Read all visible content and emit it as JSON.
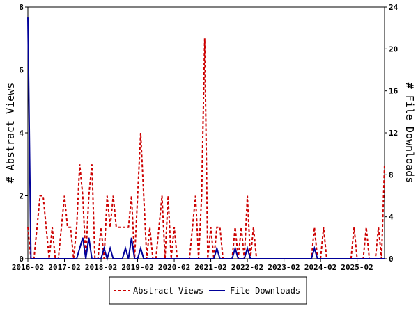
{
  "chart_data": {
    "type": "line",
    "ylabel_left": "# Abstract Views",
    "ylabel_right": "# File Downloads",
    "ylim_left": [
      0,
      8
    ],
    "ylim_right": [
      0,
      24
    ],
    "yticks_left": [
      "0",
      "2",
      "4",
      "6",
      "8"
    ],
    "yticks_right": [
      "0",
      "4",
      "8",
      "12",
      "16",
      "20",
      "24"
    ],
    "xlim": [
      "2016-02",
      "2025-11"
    ],
    "xticks": [
      "2016-02",
      "2017-02",
      "2018-02",
      "2019-02",
      "2020-02",
      "2021-02",
      "2022-02",
      "2023-02",
      "2024-02",
      "2025-02"
    ],
    "grid": false,
    "legend_position": "bottom",
    "series": [
      {
        "name": "Abstract Views",
        "axis": "left",
        "color": "#cc0000",
        "style": "dashed",
        "points": [
          [
            "2016-02",
            1
          ],
          [
            "2016-03",
            0
          ],
          [
            "2016-04",
            0
          ],
          [
            "2016-05",
            1
          ],
          [
            "2016-06",
            2
          ],
          [
            "2016-07",
            2
          ],
          [
            "2016-08",
            1
          ],
          [
            "2016-09",
            0
          ],
          [
            "2016-10",
            1
          ],
          [
            "2016-11",
            0
          ],
          [
            "2016-12",
            0
          ],
          [
            "2017-01",
            1
          ],
          [
            "2017-02",
            2
          ],
          [
            "2017-03",
            1
          ],
          [
            "2017-04",
            1
          ],
          [
            "2017-05",
            0
          ],
          [
            "2017-06",
            1
          ],
          [
            "2017-07",
            3
          ],
          [
            "2017-08",
            2
          ],
          [
            "2017-09",
            0
          ],
          [
            "2017-10",
            2
          ],
          [
            "2017-11",
            3
          ],
          [
            "2017-12",
            0
          ],
          [
            "2018-01",
            0
          ],
          [
            "2018-02",
            1
          ],
          [
            "2018-03",
            0
          ],
          [
            "2018-04",
            2
          ],
          [
            "2018-05",
            1
          ],
          [
            "2018-06",
            2
          ],
          [
            "2018-07",
            1
          ],
          [
            "2018-08",
            1
          ],
          [
            "2018-09",
            1
          ],
          [
            "2018-10",
            1
          ],
          [
            "2018-11",
            1
          ],
          [
            "2018-12",
            2
          ],
          [
            "2019-01",
            0
          ],
          [
            "2019-02",
            2
          ],
          [
            "2019-03",
            4
          ],
          [
            "2019-04",
            2
          ],
          [
            "2019-05",
            0
          ],
          [
            "2019-06",
            1
          ],
          [
            "2019-07",
            0
          ],
          [
            "2019-08",
            0
          ],
          [
            "2019-09",
            1
          ],
          [
            "2019-10",
            2
          ],
          [
            "2019-11",
            0
          ],
          [
            "2019-12",
            2
          ],
          [
            "2020-01",
            0
          ],
          [
            "2020-02",
            1
          ],
          [
            "2020-03",
            0
          ],
          [
            "2020-04",
            0
          ],
          [
            "2020-05",
            0
          ],
          [
            "2020-06",
            0
          ],
          [
            "2020-07",
            0
          ],
          [
            "2020-08",
            1
          ],
          [
            "2020-09",
            2
          ],
          [
            "2020-10",
            0
          ],
          [
            "2020-11",
            2
          ],
          [
            "2020-12",
            7
          ],
          [
            "2021-01",
            0
          ],
          [
            "2021-02",
            1
          ],
          [
            "2021-03",
            0
          ],
          [
            "2021-04",
            1
          ],
          [
            "2021-05",
            1
          ],
          [
            "2021-06",
            0
          ],
          [
            "2021-07",
            0
          ],
          [
            "2021-08",
            0
          ],
          [
            "2021-09",
            0
          ],
          [
            "2021-10",
            1
          ],
          [
            "2021-11",
            0
          ],
          [
            "2021-12",
            1
          ],
          [
            "2022-01",
            0
          ],
          [
            "2022-02",
            2
          ],
          [
            "2022-03",
            0
          ],
          [
            "2022-04",
            1
          ],
          [
            "2022-05",
            0
          ],
          [
            "2022-06",
            0
          ],
          [
            "2022-07",
            0
          ],
          [
            "2022-08",
            0
          ],
          [
            "2022-09",
            0
          ],
          [
            "2022-10",
            0
          ],
          [
            "2022-11",
            0
          ],
          [
            "2022-12",
            0
          ],
          [
            "2023-01",
            0
          ],
          [
            "2023-02",
            0
          ],
          [
            "2023-03",
            0
          ],
          [
            "2023-04",
            0
          ],
          [
            "2023-05",
            0
          ],
          [
            "2023-06",
            0
          ],
          [
            "2023-07",
            0
          ],
          [
            "2023-08",
            0
          ],
          [
            "2023-09",
            0
          ],
          [
            "2023-10",
            0
          ],
          [
            "2023-11",
            0
          ],
          [
            "2023-12",
            1
          ],
          [
            "2024-01",
            0
          ],
          [
            "2024-02",
            0
          ],
          [
            "2024-03",
            1
          ],
          [
            "2024-04",
            0
          ],
          [
            "2024-05",
            0
          ],
          [
            "2024-06",
            0
          ],
          [
            "2024-07",
            0
          ],
          [
            "2024-08",
            0
          ],
          [
            "2024-09",
            0
          ],
          [
            "2024-10",
            0
          ],
          [
            "2024-11",
            0
          ],
          [
            "2024-12",
            0
          ],
          [
            "2025-01",
            1
          ],
          [
            "2025-02",
            0
          ],
          [
            "2025-03",
            0
          ],
          [
            "2025-04",
            0
          ],
          [
            "2025-05",
            1
          ],
          [
            "2025-06",
            0
          ],
          [
            "2025-07",
            0
          ],
          [
            "2025-08",
            0
          ],
          [
            "2025-09",
            1
          ],
          [
            "2025-10",
            0
          ],
          [
            "2025-11",
            3
          ]
        ]
      },
      {
        "name": "File Downloads",
        "axis": "right",
        "color": "#000099",
        "style": "solid",
        "points": [
          [
            "2016-02",
            23
          ],
          [
            "2016-03",
            0
          ],
          [
            "2016-04",
            0
          ],
          [
            "2016-05",
            0
          ],
          [
            "2016-06",
            0
          ],
          [
            "2016-07",
            0
          ],
          [
            "2016-08",
            0
          ],
          [
            "2016-09",
            0
          ],
          [
            "2016-10",
            0
          ],
          [
            "2016-11",
            0
          ],
          [
            "2016-12",
            0
          ],
          [
            "2017-01",
            0
          ],
          [
            "2017-02",
            0
          ],
          [
            "2017-03",
            0
          ],
          [
            "2017-04",
            0
          ],
          [
            "2017-05",
            0
          ],
          [
            "2017-06",
            0
          ],
          [
            "2017-07",
            1
          ],
          [
            "2017-08",
            2
          ],
          [
            "2017-09",
            0
          ],
          [
            "2017-10",
            2
          ],
          [
            "2017-11",
            0
          ],
          [
            "2017-12",
            0
          ],
          [
            "2018-01",
            0
          ],
          [
            "2018-02",
            0
          ],
          [
            "2018-03",
            1
          ],
          [
            "2018-04",
            0
          ],
          [
            "2018-05",
            1
          ],
          [
            "2018-06",
            0
          ],
          [
            "2018-07",
            0
          ],
          [
            "2018-08",
            0
          ],
          [
            "2018-09",
            0
          ],
          [
            "2018-10",
            1
          ],
          [
            "2018-11",
            0
          ],
          [
            "2018-12",
            2
          ],
          [
            "2019-01",
            0
          ],
          [
            "2019-02",
            0
          ],
          [
            "2019-03",
            1
          ],
          [
            "2019-04",
            0
          ],
          [
            "2019-05",
            0
          ],
          [
            "2019-06",
            0
          ],
          [
            "2019-07",
            0
          ],
          [
            "2019-08",
            0
          ],
          [
            "2019-09",
            0
          ],
          [
            "2019-10",
            0
          ],
          [
            "2019-11",
            0
          ],
          [
            "2019-12",
            0
          ],
          [
            "2020-01",
            0
          ],
          [
            "2020-02",
            0
          ],
          [
            "2020-03",
            0
          ],
          [
            "2020-04",
            0
          ],
          [
            "2020-05",
            0
          ],
          [
            "2020-06",
            0
          ],
          [
            "2020-07",
            0
          ],
          [
            "2020-08",
            0
          ],
          [
            "2020-09",
            0
          ],
          [
            "2020-10",
            0
          ],
          [
            "2020-11",
            0
          ],
          [
            "2020-12",
            0
          ],
          [
            "2021-01",
            0
          ],
          [
            "2021-02",
            0
          ],
          [
            "2021-03",
            0
          ],
          [
            "2021-04",
            1
          ],
          [
            "2021-05",
            0
          ],
          [
            "2021-06",
            0
          ],
          [
            "2021-07",
            0
          ],
          [
            "2021-08",
            0
          ],
          [
            "2021-09",
            0
          ],
          [
            "2021-10",
            1
          ],
          [
            "2021-11",
            0
          ],
          [
            "2021-12",
            0
          ],
          [
            "2022-01",
            0
          ],
          [
            "2022-02",
            1
          ],
          [
            "2022-03",
            0
          ],
          [
            "2022-04",
            0
          ],
          [
            "2022-05",
            0
          ],
          [
            "2022-06",
            0
          ],
          [
            "2022-07",
            0
          ],
          [
            "2022-08",
            0
          ],
          [
            "2022-09",
            0
          ],
          [
            "2022-10",
            0
          ],
          [
            "2022-11",
            0
          ],
          [
            "2022-12",
            0
          ],
          [
            "2023-01",
            0
          ],
          [
            "2023-02",
            0
          ],
          [
            "2023-03",
            0
          ],
          [
            "2023-04",
            0
          ],
          [
            "2023-05",
            0
          ],
          [
            "2023-06",
            0
          ],
          [
            "2023-07",
            0
          ],
          [
            "2023-08",
            0
          ],
          [
            "2023-09",
            0
          ],
          [
            "2023-10",
            0
          ],
          [
            "2023-11",
            0
          ],
          [
            "2023-12",
            1
          ],
          [
            "2024-01",
            0
          ],
          [
            "2024-02",
            0
          ],
          [
            "2024-03",
            0
          ],
          [
            "2024-04",
            0
          ],
          [
            "2024-05",
            0
          ],
          [
            "2024-06",
            0
          ],
          [
            "2024-07",
            0
          ],
          [
            "2024-08",
            0
          ],
          [
            "2024-09",
            0
          ],
          [
            "2024-10",
            0
          ],
          [
            "2024-11",
            0
          ],
          [
            "2024-12",
            0
          ],
          [
            "2025-01",
            0
          ],
          [
            "2025-02",
            0
          ],
          [
            "2025-03",
            0
          ],
          [
            "2025-04",
            0
          ],
          [
            "2025-05",
            0
          ],
          [
            "2025-06",
            0
          ],
          [
            "2025-07",
            0
          ],
          [
            "2025-08",
            0
          ],
          [
            "2025-09",
            0
          ],
          [
            "2025-10",
            0
          ],
          [
            "2025-11",
            0
          ]
        ]
      }
    ]
  }
}
